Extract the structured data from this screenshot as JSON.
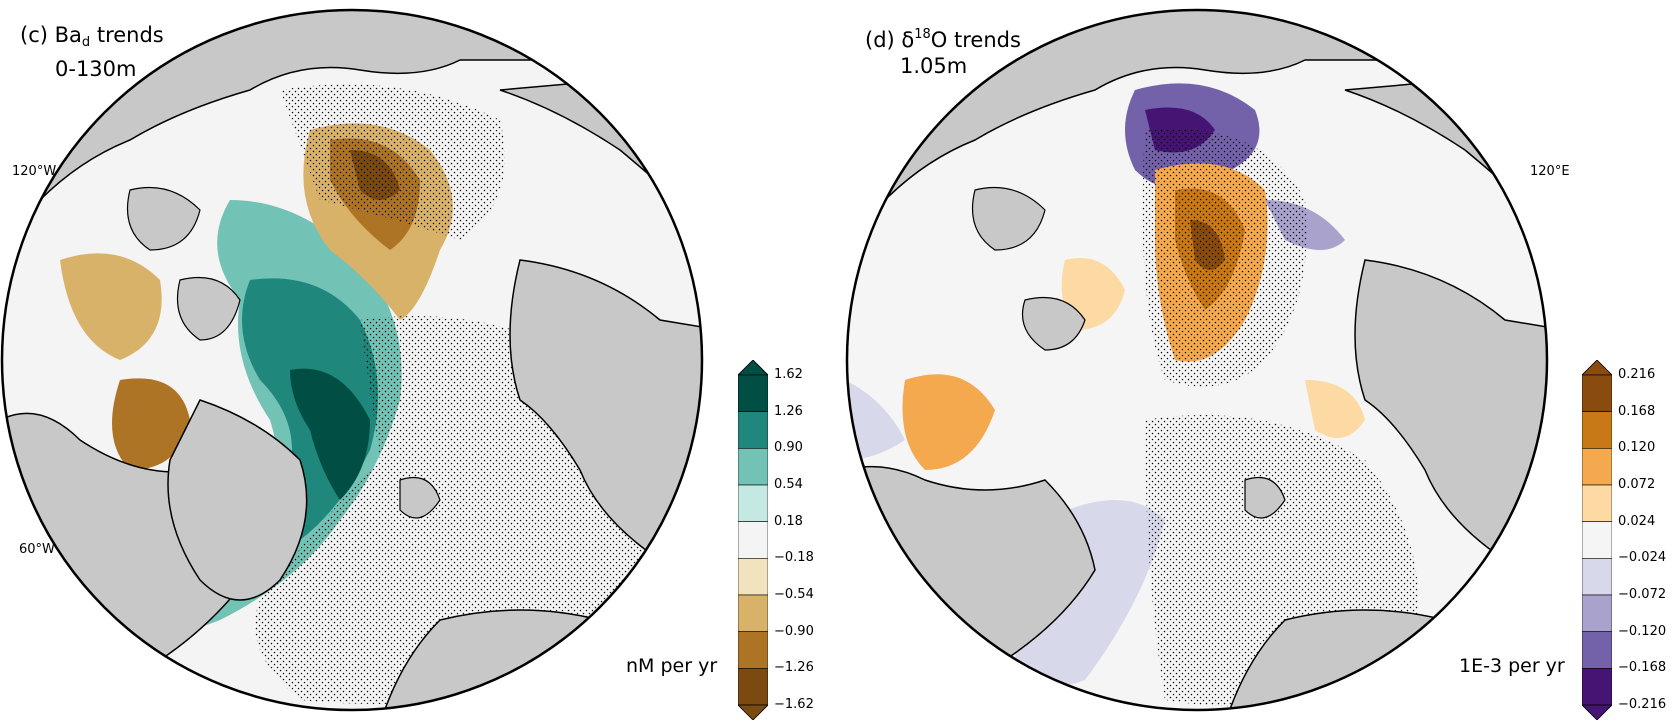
{
  "panels": [
    {
      "title_prefix": "(c) Ba",
      "title_sub": "d",
      "title_suffix": " trends",
      "subtitle": "0-130m",
      "lon_upper": "120°W",
      "lon_lower": "60°W",
      "units": "nM per yr",
      "colorbar": {
        "levels": [
          "1.62",
          "1.26",
          "0.90",
          "0.54",
          "0.18",
          "−0.18",
          "−0.54",
          "−0.90",
          "−1.26",
          "−1.62"
        ],
        "colors": [
          "#004e44",
          "#1f877b",
          "#72c2b6",
          "#c4e8e2",
          "#f4f4f4",
          "#f1e3bd",
          "#d9b26a",
          "#ad7426",
          "#7a4a10"
        ]
      }
    },
    {
      "title_prefix": "(d) δ",
      "title_sup": "18",
      "title_suffix": "O trends",
      "subtitle": "1.05m",
      "lon_upper": "120°E",
      "units": "1E-3 per yr",
      "colorbar": {
        "levels": [
          "0.216",
          "0.168",
          "0.120",
          "0.072",
          "0.024",
          "−0.024",
          "−0.072",
          "−0.120",
          "−0.168",
          "−0.216"
        ],
        "colors": [
          "#8a4b0f",
          "#c97818",
          "#f4a94f",
          "#fdd9a4",
          "#f5f5f5",
          "#d8d8eb",
          "#a9a2cd",
          "#7361a9",
          "#461473"
        ]
      }
    }
  ]
}
